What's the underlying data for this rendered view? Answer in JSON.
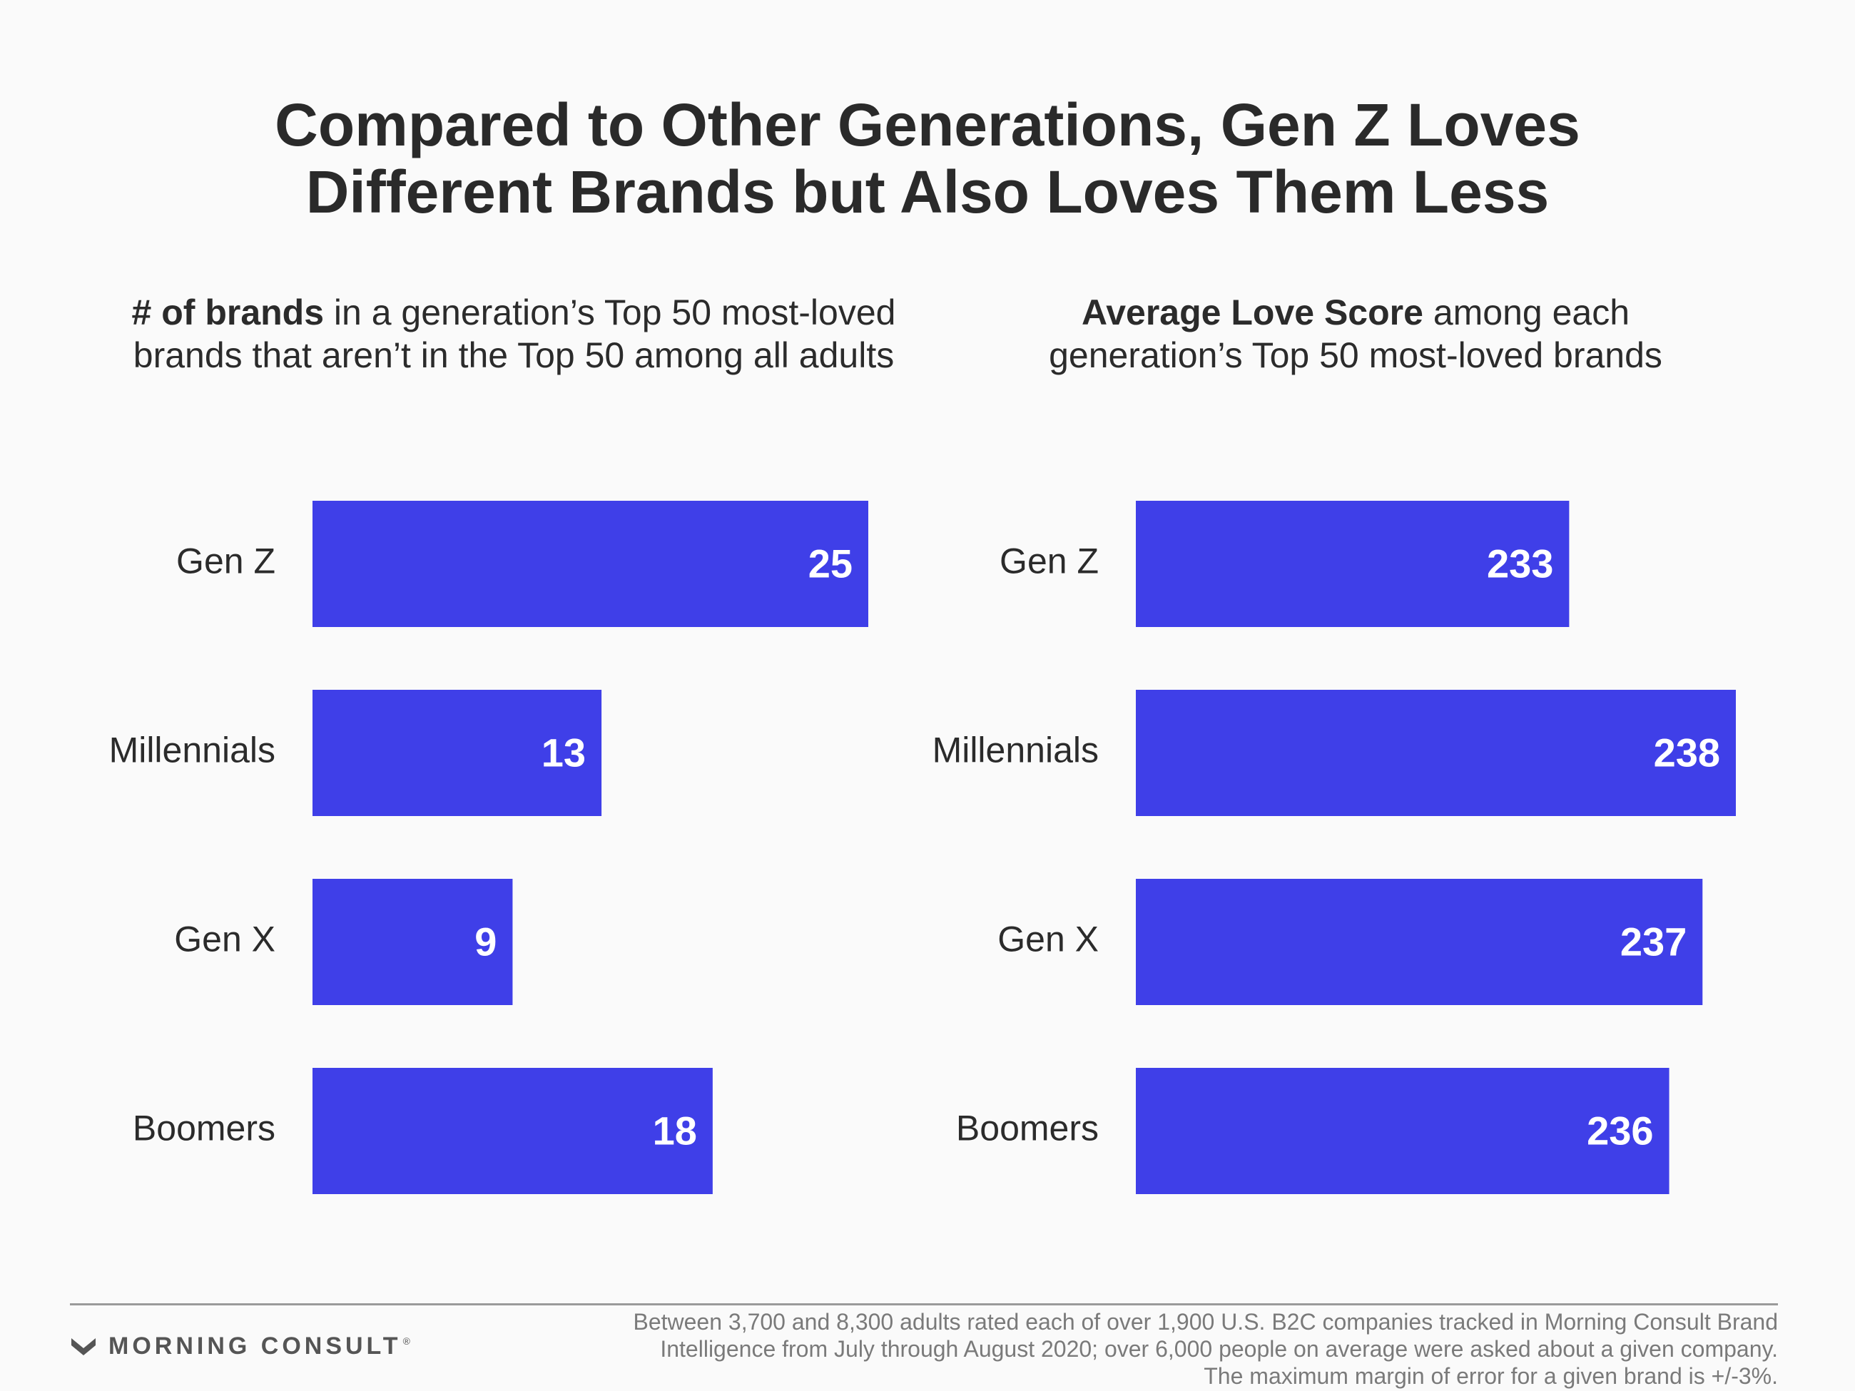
{
  "title": {
    "line1": "Compared to Other Generations, Gen Z Loves",
    "line2": "Different Brands but Also Loves Them Less"
  },
  "left_subtitle": {
    "bold": "# of brands",
    "line1_rest": " in a generation’s Top 50 most-loved",
    "line2": "brands that aren’t in the Top 50 among all adults"
  },
  "right_subtitle": {
    "bold": "Average Love Score",
    "line1_rest": " among each",
    "line2": "generation’s Top 50 most-loved brands"
  },
  "colors": {
    "bar": "#3f3fe8",
    "value_text": "#ffffff"
  },
  "chart_data": [
    {
      "type": "bar",
      "orientation": "horizontal",
      "categories": [
        "Gen Z",
        "Millennials",
        "Gen X",
        "Boomers"
      ],
      "values": [
        25,
        13,
        9,
        18
      ],
      "xlim": [
        0,
        25
      ],
      "grid": false
    },
    {
      "type": "bar",
      "orientation": "horizontal",
      "categories": [
        "Gen Z",
        "Millennials",
        "Gen X",
        "Boomers"
      ],
      "values": [
        233,
        238,
        237,
        236
      ],
      "xlim": [
        220,
        238
      ],
      "grid": false
    }
  ],
  "footer": {
    "logo_text": "MORNING CONSULT",
    "logo_mark": "®",
    "note_line1": "Between 3,700 and 8,300 adults rated each of over 1,900 U.S. B2C companies tracked in Morning Consult Brand",
    "note_line2": "Intelligence from July through August 2020; over 6,000 people on average were asked about a given company.",
    "note_line3": "The maximum margin of error for a given brand is +/-3%."
  }
}
